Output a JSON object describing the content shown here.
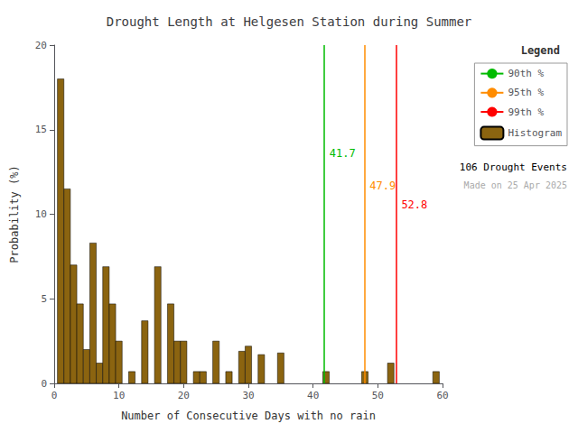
{
  "chart_data": {
    "type": "histogram",
    "title": "Drought Length at Helgesen Station during Summer",
    "xlabel": "Number of Consecutive Days with no rain",
    "ylabel": "Probability (%)",
    "name": "Histogram",
    "color": "#8B6410",
    "bins": [
      0.5,
      1.5,
      2.5,
      3.5,
      4.5,
      5.5,
      6.5,
      7.5,
      8.5,
      9.5,
      10.5,
      11.5,
      12.5,
      13.5,
      14.5,
      15.5,
      16.5,
      17.5,
      18.5,
      19.5,
      20.5,
      21.5,
      22.5,
      23.5,
      24.5,
      25.5,
      26.5,
      27.5,
      28.5,
      29.5,
      30.5,
      31.5,
      32.5,
      33.5,
      34.5,
      35.5,
      36.5,
      37.5,
      38.5,
      39.5,
      40.5,
      41.5,
      42.5,
      43.5,
      44.5,
      45.5,
      46.5,
      47.5,
      48.5,
      49.5,
      50.5,
      51.5,
      52.5,
      53.5,
      54.5,
      55.5,
      56.5,
      57.5,
      58.5,
      59.5
    ],
    "values": [
      18.0,
      11.5,
      7.0,
      4.7,
      2.0,
      8.3,
      1.2,
      6.9,
      4.7,
      2.5,
      0.0,
      0.7,
      0.0,
      3.7,
      0.0,
      6.9,
      0.0,
      4.7,
      2.5,
      2.5,
      0.0,
      0.7,
      0.7,
      0.0,
      2.5,
      0.0,
      0.7,
      0.0,
      1.9,
      2.2,
      0.0,
      1.7,
      0.0,
      0.0,
      1.8,
      0.0,
      0.0,
      0.0,
      0.0,
      0.0,
      0.0,
      0.7,
      0.0,
      0.0,
      0.0,
      0.0,
      0.0,
      0.7,
      0.0,
      0.0,
      0.0,
      1.2,
      0.0,
      0.0,
      0.0,
      0.0,
      0.0,
      0.0,
      0.7
    ],
    "xlim": [
      0,
      60
    ],
    "xticks": [
      0,
      10,
      20,
      30,
      40,
      50,
      60
    ],
    "ylim": [
      0,
      20
    ],
    "yticks": [
      0,
      5,
      10,
      15,
      20
    ],
    "grid": false,
    "legend": "upper right",
    "legend_title": "Legend",
    "lines": [
      {
        "name": "90th %",
        "x": 41.7,
        "label": "41.7",
        "color": "#00BB00"
      },
      {
        "name": "95th %",
        "x": 47.9,
        "label": "47.9",
        "color": "#FF8C00"
      },
      {
        "name": "99th %",
        "x": 52.8,
        "label": "52.8",
        "color": "#FF0000"
      }
    ],
    "annotations": [
      {
        "text": "106 Drought Events"
      },
      {
        "text": "Made on 25 Apr 2025",
        "color": "#AAAAAA"
      }
    ]
  }
}
